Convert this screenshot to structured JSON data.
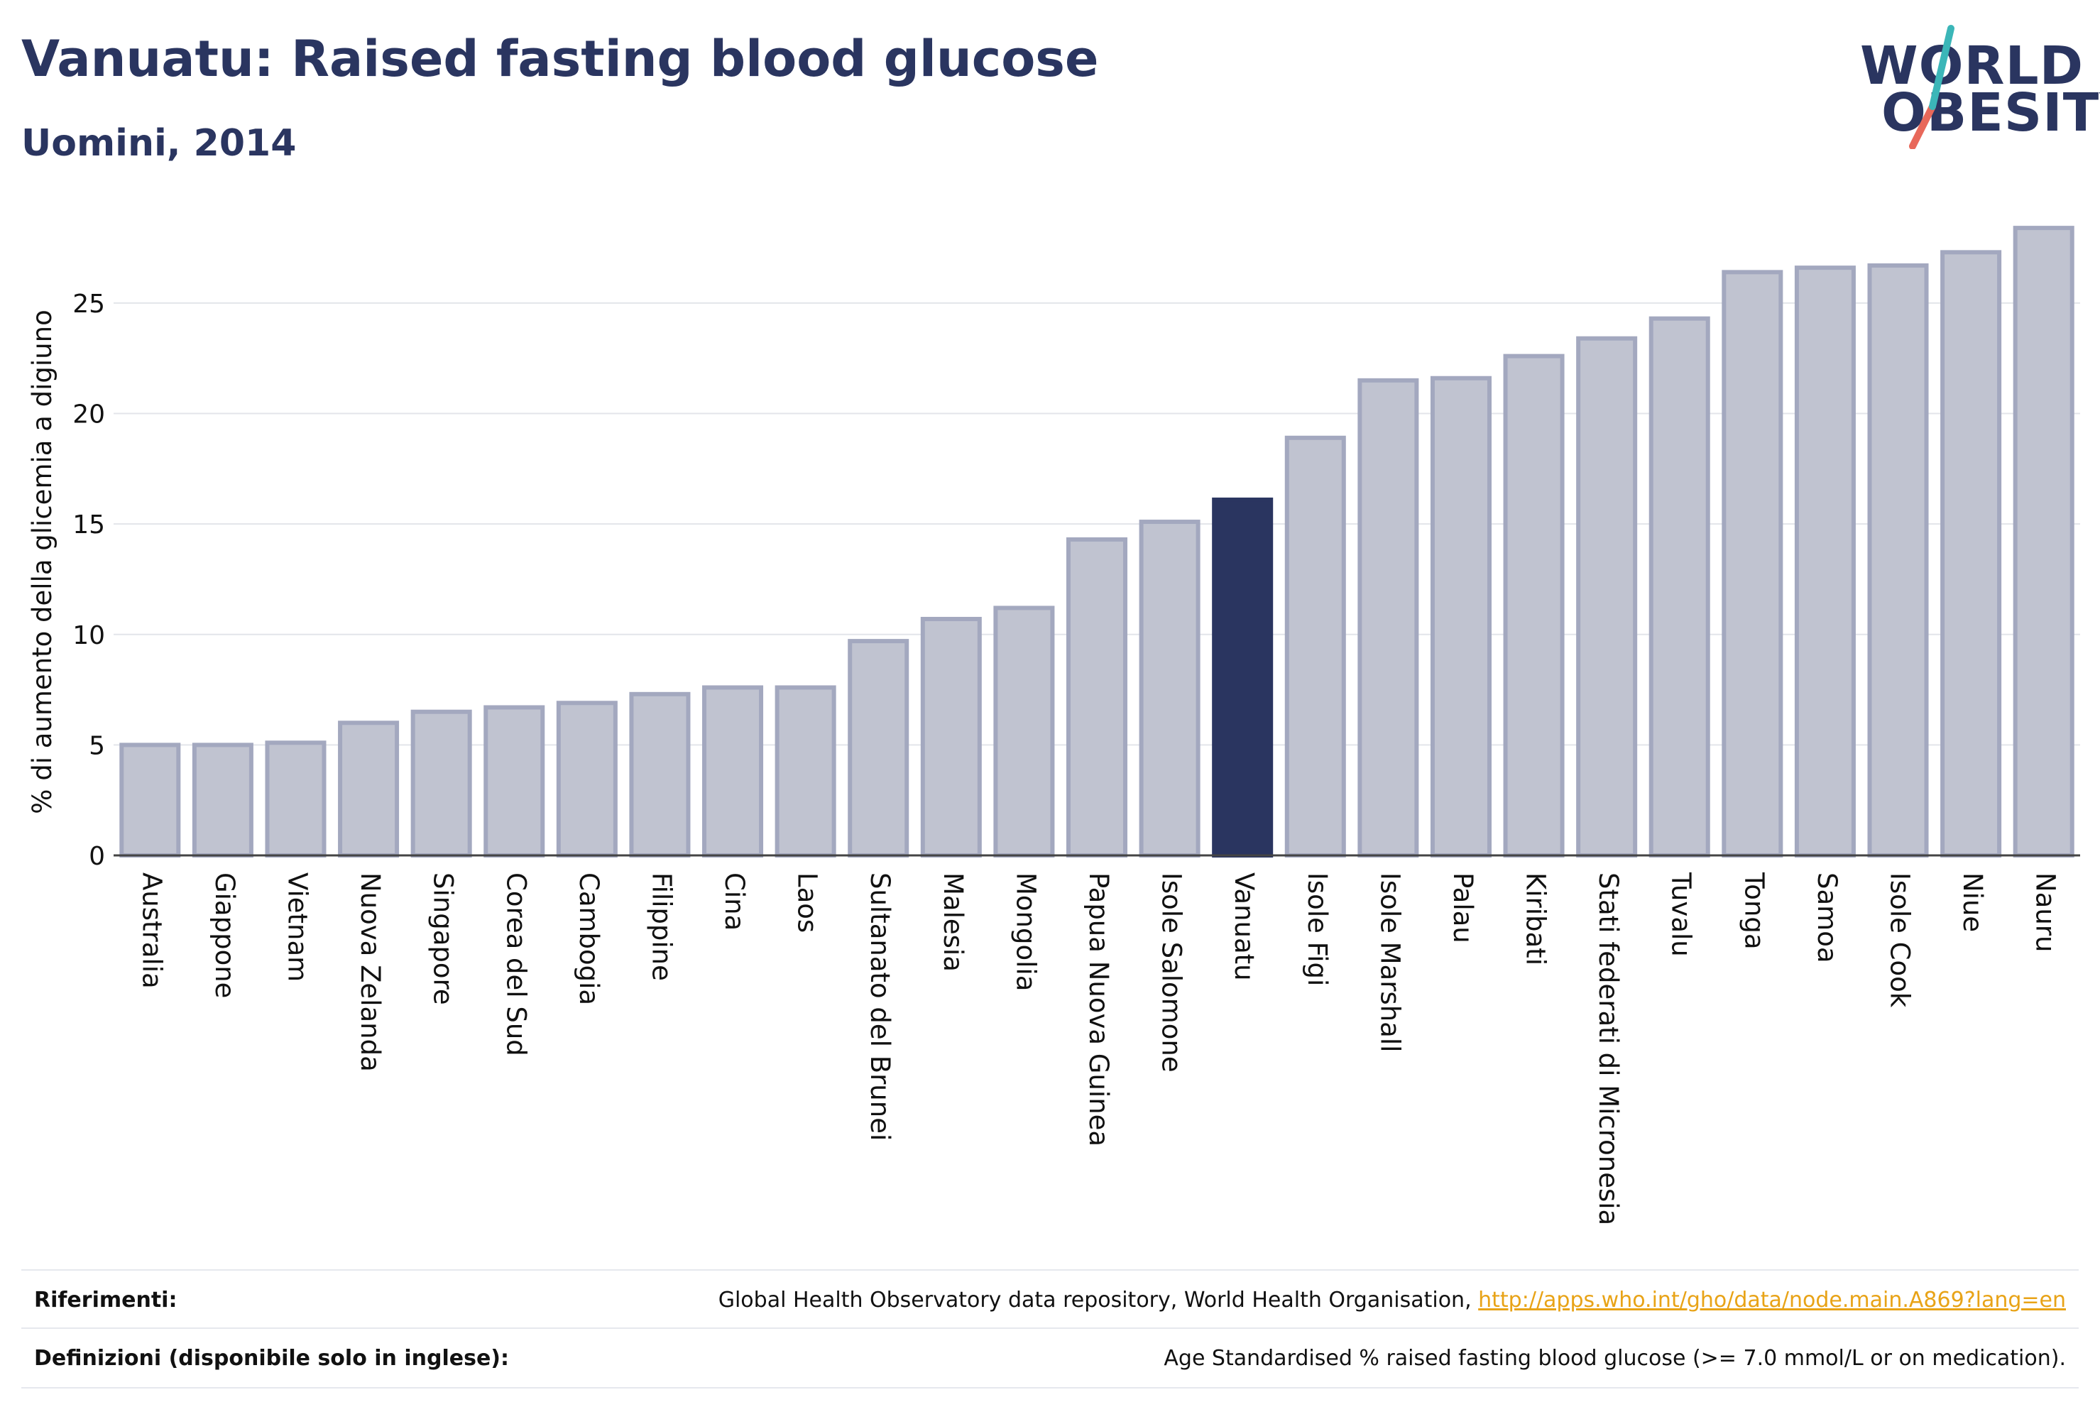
{
  "header": {
    "title": "Vanuatu: Raised fasting blood glucose",
    "subtitle": "Uomini, 2014"
  },
  "logo": {
    "line1": "WORLD",
    "line2": "OBESITY"
  },
  "colors": {
    "highlight": "#2a3560",
    "bar": "#c0c3d0",
    "bar_border": "#a3a8bf",
    "text": "#2a3560"
  },
  "chart_data": {
    "type": "bar",
    "title": "Vanuatu: Raised fasting blood glucose",
    "subtitle": "Uomini, 2014",
    "ylabel": "% di aumento della glicemia a digiuno",
    "xlabel": "",
    "ylim": [
      0,
      28.5
    ],
    "yticks": [
      0,
      5,
      10,
      15,
      20,
      25
    ],
    "highlight": "Vanuatu",
    "categories": [
      "Australia",
      "Giappone",
      "Vietnam",
      "Nuova Zelanda",
      "Singapore",
      "Corea del Sud",
      "Cambogia",
      "Filippine",
      "Cina",
      "Laos",
      "Sultanato del Brunei",
      "Malesia",
      "Mongolia",
      "Papua Nuova Guinea",
      "Isole Salomone",
      "Vanuatu",
      "Isole Figi",
      "Isole Marshall",
      "Palau",
      "Kiribati",
      "Stati federati di Micronesia",
      "Tuvalu",
      "Tonga",
      "Samoa",
      "Isole Cook",
      "Niue",
      "Nauru"
    ],
    "values": [
      5.0,
      5.0,
      5.1,
      6.0,
      6.5,
      6.7,
      6.9,
      7.3,
      7.6,
      7.6,
      9.7,
      10.7,
      11.2,
      14.3,
      15.1,
      16.1,
      18.9,
      21.5,
      21.6,
      22.6,
      23.4,
      24.3,
      26.4,
      26.6,
      26.7,
      27.3,
      28.4
    ],
    "grid": true,
    "legend": "none"
  },
  "footer": {
    "references_label": "Riferimenti:",
    "references_text": "Global Health Observatory data repository, World Health Organisation, ",
    "references_link": "http://apps.who.int/gho/data/node.main.A869?lang=en",
    "definitions_label": "Definizioni (disponibile solo in inglese):",
    "definitions_text": "Age Standardised % raised fasting blood glucose (>= 7.0 mmol/L or on medication)."
  }
}
